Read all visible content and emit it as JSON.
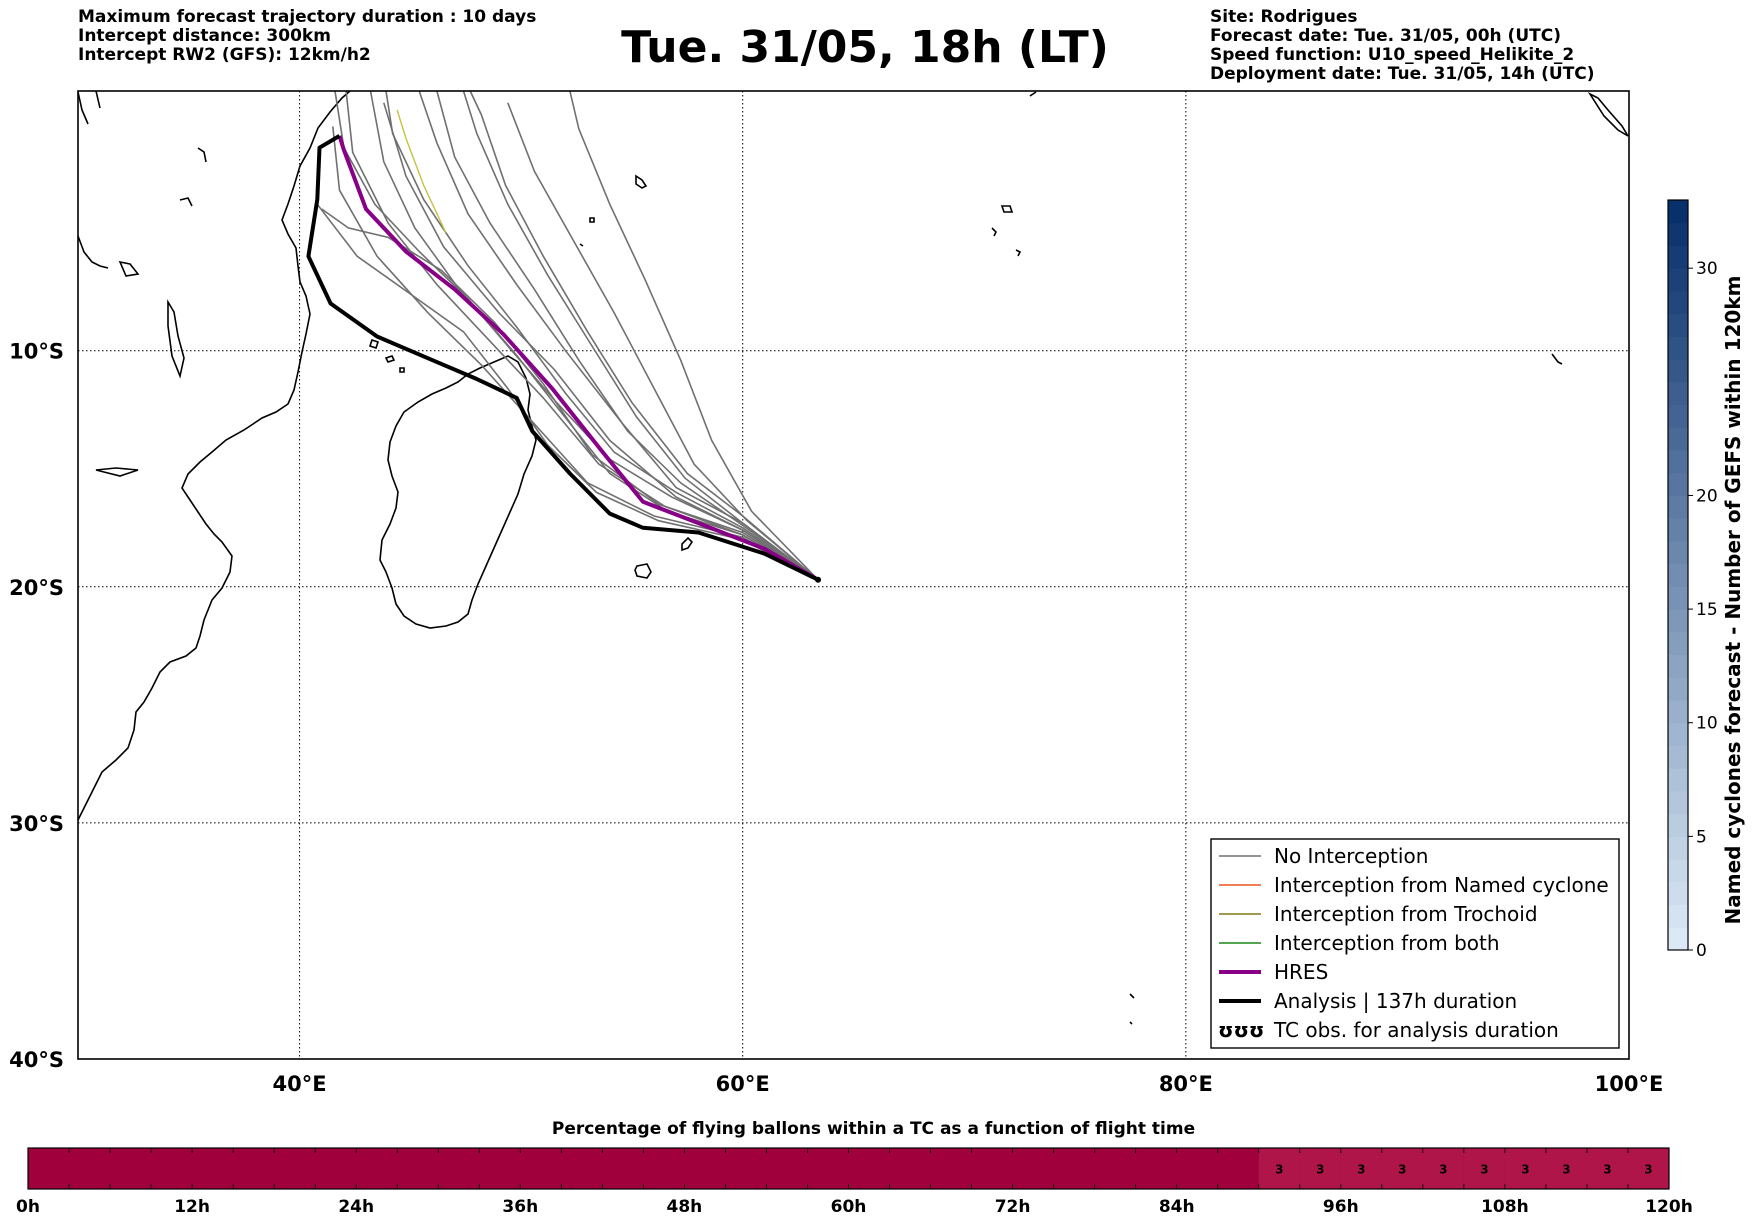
{
  "header_left": {
    "line1": "Maximum forecast trajectory duration : 10 days",
    "line2": "Intercept distance: 300km",
    "line3": "Intercept RW2 (GFS):  12km/h2"
  },
  "title": "Tue. 31/05, 18h (LT)",
  "header_right": {
    "line1": "Site: Rodrigues",
    "line2": "Forecast date: Tue. 31/05, 00h (UTC)",
    "line3": "Speed function: U10_speed_Helikite_2",
    "line4": "Deployment date: Tue. 31/05, 14h (UTC)"
  },
  "map": {
    "lon_range": [
      30,
      100
    ],
    "lat_range": [
      -40,
      1
    ],
    "grid": true,
    "lon_ticks": [
      {
        "v": 40,
        "label": "40°E"
      },
      {
        "v": 60,
        "label": "60°E"
      },
      {
        "v": 80,
        "label": "80°E"
      },
      {
        "v": 100,
        "label": "100°E"
      }
    ],
    "lat_ticks": [
      {
        "v": -10,
        "label": "10°S"
      },
      {
        "v": -20,
        "label": "20°S"
      },
      {
        "v": -30,
        "label": "30°S"
      },
      {
        "v": -40,
        "label": "40°S"
      }
    ],
    "launch_point": [
      63.4,
      -19.7
    ],
    "colors": {
      "no_interception": "#707070",
      "named_cyclone": "#e8531c",
      "trochoid": "#807a10",
      "both": "#1a8a1a",
      "hres": "#880088",
      "analysis": "#000000"
    }
  },
  "legend": {
    "items": [
      {
        "label": "No Interception",
        "color": "#707070",
        "width": 1.5
      },
      {
        "label": "Interception from Named cyclone",
        "color": "#e8531c",
        "width": 1.5
      },
      {
        "label": "Interception from Trochoid",
        "color": "#807a10",
        "width": 1.5
      },
      {
        "label": "Interception from both",
        "color": "#1a8a1a",
        "width": 1.5
      },
      {
        "label": "HRES",
        "color": "#880088",
        "width": 4
      },
      {
        "label": "Analysis | 137h duration",
        "color": "#000000",
        "width": 4
      },
      {
        "label": "TC obs. for analysis duration",
        "symbol": "ʊʊʊ"
      }
    ]
  },
  "colorbar": {
    "label": "Named cyclones forecast - Number of GEFS within 120km",
    "range": [
      0,
      33
    ],
    "ticks": [
      {
        "v": 0,
        "label": "0"
      },
      {
        "v": 5,
        "label": "5"
      },
      {
        "v": 10,
        "label": "10"
      },
      {
        "v": 15,
        "label": "15"
      },
      {
        "v": 20,
        "label": "20"
      },
      {
        "v": 30,
        "label": "30"
      }
    ],
    "color_low": "#dbe9f6",
    "color_high": "#08306b"
  },
  "timeline": {
    "title": "Percentage of flying ballons within a TC as a function of flight time",
    "ticks": [
      "0h",
      "12h",
      "24h",
      "36h",
      "48h",
      "60h",
      "72h",
      "84h",
      "96h",
      "108h",
      "120h"
    ],
    "max_hours": 120,
    "step_hours": 3,
    "base_color": "#a0003c",
    "cell_color": "#b0154a",
    "labeled_cells": [
      {
        "h": 90,
        "label": "3"
      },
      {
        "h": 93,
        "label": "3"
      },
      {
        "h": 96,
        "label": "3"
      },
      {
        "h": 99,
        "label": "3"
      },
      {
        "h": 102,
        "label": "3"
      },
      {
        "h": 105,
        "label": "3"
      },
      {
        "h": 108,
        "label": "3"
      },
      {
        "h": 111,
        "label": "3"
      },
      {
        "h": 114,
        "label": "3"
      },
      {
        "h": 117,
        "label": "3"
      }
    ]
  }
}
